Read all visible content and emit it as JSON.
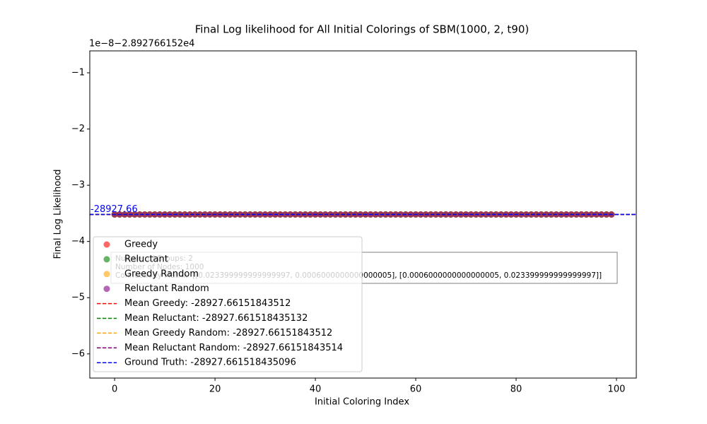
{
  "chart_data": {
    "type": "scatter",
    "title": "Final Log likelihood for All Initial Colorings of SBM(1000, 2, t90)",
    "offset_label": "1e−8−2.892766152e4",
    "xlabel": "Initial Coloring Index",
    "ylabel": "Final Log Likelihood",
    "xlim": [
      -4.95,
      103.95
    ],
    "ylim": [
      -6.43,
      -0.61
    ],
    "xticks": [
      0,
      20,
      40,
      60,
      80,
      100
    ],
    "yticks": [
      {
        "value": -1,
        "label": "−1"
      },
      {
        "value": -2,
        "label": "−2"
      },
      {
        "value": -3,
        "label": "−3"
      },
      {
        "value": -4,
        "label": "−4"
      },
      {
        "value": -5,
        "label": "−5"
      },
      {
        "value": -6,
        "label": "−6"
      }
    ],
    "x": [
      0,
      1,
      2,
      3,
      4,
      5,
      6,
      7,
      8,
      9,
      10,
      11,
      12,
      13,
      14,
      15,
      16,
      17,
      18,
      19,
      20,
      21,
      22,
      23,
      24,
      25,
      26,
      27,
      28,
      29,
      30,
      31,
      32,
      33,
      34,
      35,
      36,
      37,
      38,
      39,
      40,
      41,
      42,
      43,
      44,
      45,
      46,
      47,
      48,
      49,
      50,
      51,
      52,
      53,
      54,
      55,
      56,
      57,
      58,
      59,
      60,
      61,
      62,
      63,
      64,
      65,
      66,
      67,
      68,
      69,
      70,
      71,
      72,
      73,
      74,
      75,
      76,
      77,
      78,
      79,
      80,
      81,
      82,
      83,
      84,
      85,
      86,
      87,
      88,
      89,
      90,
      91,
      92,
      93,
      94,
      95,
      96,
      97,
      98,
      99
    ],
    "series": [
      {
        "name": "Greedy",
        "color": "#ff0000",
        "values": [
          -3.52,
          -3.52,
          -3.52,
          -3.52,
          -3.52,
          -3.52,
          -3.52,
          -3.52,
          -3.52,
          -3.52,
          -3.52,
          -3.52,
          -3.52,
          -3.52,
          -3.52,
          -3.52,
          -3.52,
          -3.52,
          -3.52,
          -3.52,
          -3.52,
          -3.52,
          -3.52,
          -3.52,
          -3.52,
          -3.52,
          -3.52,
          -3.52,
          -3.52,
          -3.52,
          -3.52,
          -3.52,
          -3.52,
          -3.52,
          -3.52,
          -3.52,
          -3.52,
          -3.52,
          -3.52,
          -3.52,
          -3.52,
          -3.52,
          -3.52,
          -3.52,
          -3.52,
          -3.52,
          -3.52,
          -3.52,
          -3.52,
          -3.52,
          -3.52,
          -3.52,
          -3.52,
          -3.52,
          -3.52,
          -3.52,
          -3.52,
          -3.52,
          -3.52,
          -3.52,
          -3.52,
          -3.52,
          -3.52,
          -3.52,
          -3.52,
          -3.52,
          -3.52,
          -3.52,
          -3.52,
          -3.52,
          -3.52,
          -3.52,
          -3.52,
          -3.52,
          -3.52,
          -3.52,
          -3.52,
          -3.52,
          -3.52,
          -3.52,
          -3.52,
          -3.52,
          -3.52,
          -3.52,
          -3.52,
          -3.52,
          -3.52,
          -3.52,
          -3.52,
          -3.52,
          -3.52,
          -3.52,
          -3.52,
          -3.52,
          -3.52,
          -3.52,
          -3.52,
          -3.52,
          -3.52,
          -3.52
        ]
      },
      {
        "name": "Reluctant",
        "color": "#008000",
        "values": [
          -3.52,
          -3.52,
          -3.52,
          -3.52,
          -3.52,
          -3.52,
          -3.52,
          -3.52,
          -3.52,
          -3.52,
          -3.52,
          -3.52,
          -3.52,
          -3.52,
          -3.52,
          -3.52,
          -3.52,
          -3.52,
          -3.52,
          -3.52,
          -3.52,
          -3.52,
          -3.52,
          -3.52,
          -3.52,
          -3.52,
          -3.52,
          -3.52,
          -3.52,
          -3.52,
          -3.52,
          -3.52,
          -3.52,
          -3.52,
          -3.52,
          -3.52,
          -3.52,
          -3.52,
          -3.52,
          -3.52,
          -3.52,
          -3.52,
          -3.52,
          -3.52,
          -3.52,
          -3.52,
          -3.52,
          -3.52,
          -3.52,
          -3.52,
          -3.52,
          -3.52,
          -3.52,
          -3.52,
          -3.52,
          -3.52,
          -3.52,
          -3.52,
          -3.52,
          -3.52,
          -3.52,
          -3.52,
          -3.52,
          -3.52,
          -3.52,
          -3.52,
          -3.52,
          -3.52,
          -3.52,
          -3.52,
          -3.52,
          -3.52,
          -3.52,
          -3.52,
          -3.52,
          -3.52,
          -3.52,
          -3.52,
          -3.52,
          -3.52,
          -3.52,
          -3.52,
          -3.52,
          -3.52,
          -3.52,
          -3.52,
          -3.52,
          -3.52,
          -3.52,
          -3.52,
          -3.52,
          -3.52,
          -3.52,
          -3.52,
          -3.52,
          -3.52,
          -3.52,
          -3.52,
          -3.52,
          -3.52
        ]
      },
      {
        "name": "Greedy Random",
        "color": "#ffa500",
        "values": [
          -3.52,
          -3.52,
          -3.52,
          -3.52,
          -3.52,
          -3.52,
          -3.52,
          -3.52,
          -3.52,
          -3.52,
          -3.52,
          -3.52,
          -3.52,
          -3.52,
          -3.52,
          -3.52,
          -3.52,
          -3.52,
          -3.52,
          -3.52,
          -3.52,
          -3.52,
          -3.52,
          -3.52,
          -3.52,
          -3.52,
          -3.52,
          -3.52,
          -3.52,
          -3.52,
          -3.52,
          -3.52,
          -3.52,
          -3.52,
          -3.52,
          -3.52,
          -3.52,
          -3.52,
          -3.52,
          -3.52,
          -3.52,
          -3.52,
          -3.52,
          -3.52,
          -3.52,
          -3.52,
          -3.52,
          -3.52,
          -3.52,
          -3.52,
          -3.52,
          -3.52,
          -3.52,
          -3.52,
          -3.52,
          -3.52,
          -3.52,
          -3.52,
          -3.52,
          -3.52,
          -3.52,
          -3.52,
          -3.52,
          -3.52,
          -3.52,
          -3.52,
          -3.52,
          -3.52,
          -3.52,
          -3.52,
          -3.52,
          -3.52,
          -3.52,
          -3.52,
          -3.52,
          -3.52,
          -3.52,
          -3.52,
          -3.52,
          -3.52,
          -3.52,
          -3.52,
          -3.52,
          -3.52,
          -3.52,
          -3.52,
          -3.52,
          -3.52,
          -3.52,
          -3.52,
          -3.52,
          -3.52,
          -3.52,
          -3.52,
          -3.52,
          -3.52,
          -3.52,
          -3.52,
          -3.52,
          -3.52
        ]
      },
      {
        "name": "Reluctant Random",
        "color": "#800080",
        "values": [
          -3.52,
          -3.52,
          -3.52,
          -3.52,
          -3.52,
          -3.52,
          -3.52,
          -3.52,
          -3.52,
          -3.52,
          -3.52,
          -3.52,
          -3.52,
          -3.52,
          -3.52,
          -3.52,
          -3.52,
          -3.52,
          -3.52,
          -3.52,
          -3.52,
          -3.52,
          -3.52,
          -3.52,
          -3.52,
          -3.52,
          -3.52,
          -3.52,
          -3.52,
          -3.52,
          -3.52,
          -3.52,
          -3.52,
          -3.52,
          -3.52,
          -3.52,
          -3.52,
          -3.52,
          -3.52,
          -3.52,
          -3.52,
          -3.52,
          -3.52,
          -3.52,
          -3.52,
          -3.52,
          -3.52,
          -3.52,
          -3.52,
          -3.52,
          -3.52,
          -3.52,
          -3.52,
          -3.52,
          -3.52,
          -3.52,
          -3.52,
          -3.52,
          -3.52,
          -3.52,
          -3.52,
          -3.52,
          -3.52,
          -3.52,
          -3.52,
          -3.52,
          -3.52,
          -3.52,
          -3.52,
          -3.52,
          -3.52,
          -3.52,
          -3.52,
          -3.52,
          -3.52,
          -3.52,
          -3.52,
          -3.52,
          -3.52,
          -3.52,
          -3.52,
          -3.52,
          -3.52,
          -3.52,
          -3.52,
          -3.52,
          -3.52,
          -3.52,
          -3.52,
          -3.52,
          -3.52,
          -3.52,
          -3.52,
          -3.52,
          -3.52,
          -3.52,
          -3.52,
          -3.52,
          -3.52,
          -3.52
        ]
      }
    ],
    "hlines": [
      {
        "name": "Mean Greedy: -28927.66151843512",
        "color": "#ff0000",
        "value": -3.52
      },
      {
        "name": "Mean Reluctant: -28927.661518435132",
        "color": "#008000",
        "value": -3.52
      },
      {
        "name": "Mean Greedy Random: -28927.66151843512",
        "color": "#ffa500",
        "value": -3.52
      },
      {
        "name": "Mean Reluctant Random: -28927.66151843514",
        "color": "#800080",
        "value": -3.52
      },
      {
        "name": "Ground Truth: -28927.661518435096",
        "color": "#0000ff",
        "value": -3.52
      }
    ],
    "annotation": "-28927.66",
    "info_box": [
      "Number of Groups: 2",
      "Number of Nodes: 1000",
      "Connectivity Matrix: [[0.023399999999999997, 0.0006000000000000005], [0.0006000000000000005, 0.023399999999999997]]"
    ]
  }
}
